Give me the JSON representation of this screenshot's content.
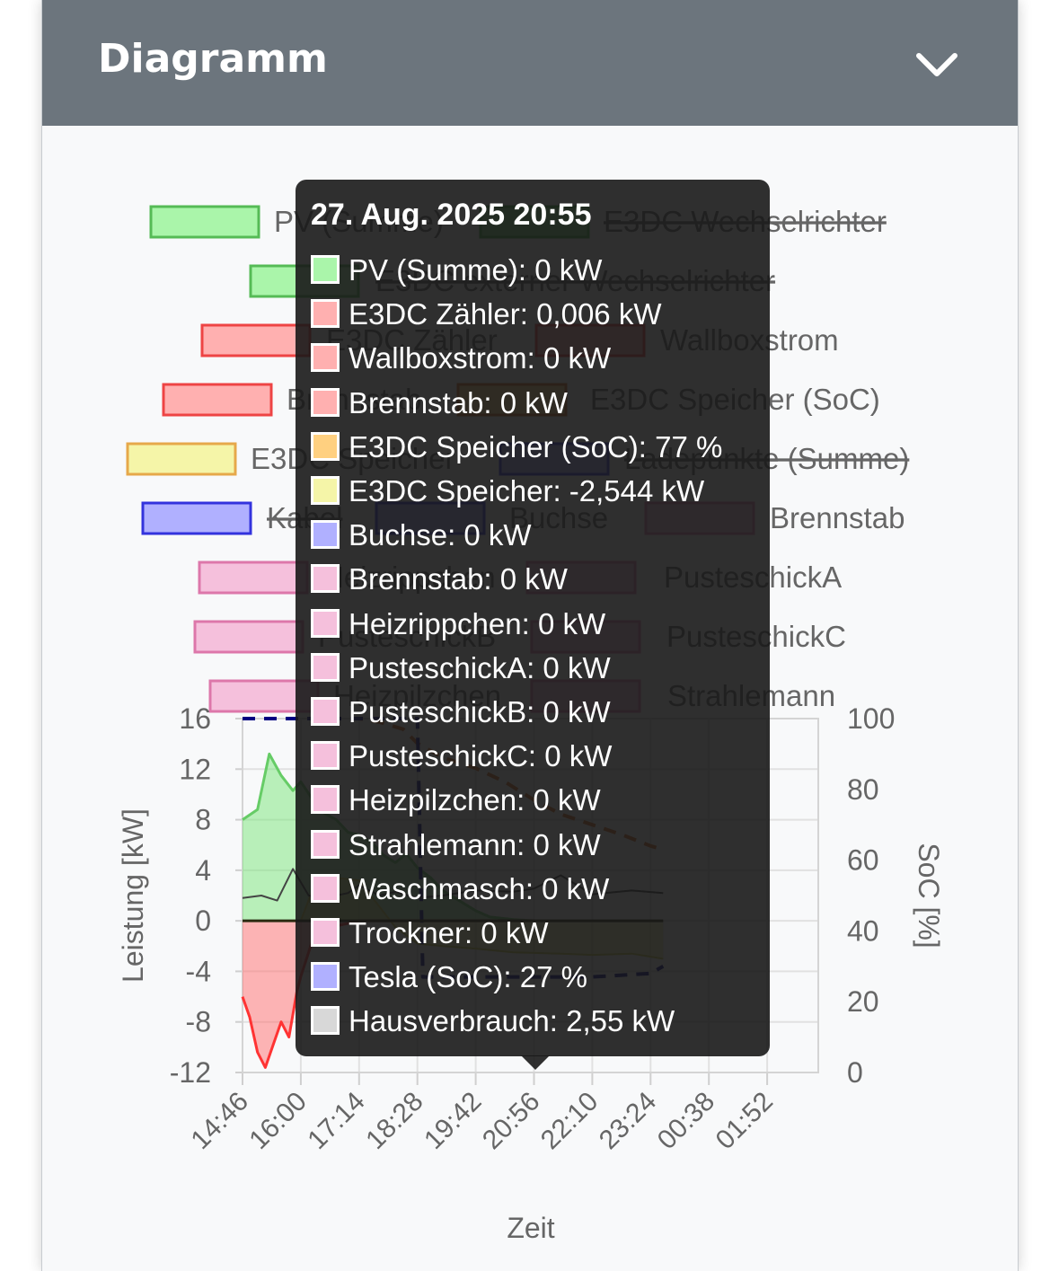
{
  "card": {
    "title": "Diagramm"
  },
  "colors": {
    "header_bg": "#6c757d",
    "card_bg": "#f8f9fa",
    "pv": "#66cc66",
    "grid_meter": "#ff3333",
    "soc": "#d2691e",
    "battery_power": "#dddd55",
    "ev_soc": "#000080",
    "consumption": "#444444"
  },
  "icons": {
    "collapse": "chevron-down-icon"
  },
  "chart_data": {
    "type": "line",
    "xlabel": "Zeit",
    "ylabel": "Leistung [kW]",
    "y2label": "SoC [%]",
    "ylim": [
      -12,
      16
    ],
    "y2lim": [
      0,
      100
    ],
    "x_ticks": [
      "14:46",
      "16:00",
      "17:14",
      "18:28",
      "19:42",
      "20:56",
      "22:10",
      "23:24",
      "00:38",
      "01:52"
    ],
    "y_ticks": [
      16,
      12,
      8,
      4,
      0,
      -4,
      -8,
      -12
    ],
    "y2_ticks": [
      100,
      80,
      60,
      40,
      20,
      0
    ],
    "grid": true,
    "legend_position": "top",
    "legend": [
      {
        "label": "PV (Summe)",
        "fill": "#aaf5aa",
        "border": "#55bb55",
        "hidden": false
      },
      {
        "label": "E3DC Wechselrichter",
        "fill": "#7fd17f",
        "border": "#44aa44",
        "hidden": true
      },
      {
        "label": "E3DC externer Wechselrichter",
        "fill": "#aaf5aa",
        "border": "#55bb55",
        "hidden": true
      },
      {
        "label": "E3DC Zähler",
        "fill": "#ffb0b0",
        "border": "#ee4444",
        "hidden": false
      },
      {
        "label": "Wallboxstrom",
        "fill": "#ffb0b0",
        "border": "#ee4444",
        "hidden": false
      },
      {
        "label": "Brennstab",
        "fill": "#ffb0b0",
        "border": "#ee4444",
        "hidden": false
      },
      {
        "label": "E3DC Speicher (SoC)",
        "fill": "#ffd080",
        "border": "#d2691e",
        "hidden": false
      },
      {
        "label": "E3DC Speicher",
        "fill": "#f5f5a8",
        "border": "#e6a84a",
        "hidden": false
      },
      {
        "label": "Ladepunkte (Summe)",
        "fill": "#b0b0ff",
        "border": "#3333dd",
        "hidden": true
      },
      {
        "label": "Kabel",
        "fill": "#b0b0ff",
        "border": "#3333dd",
        "hidden": true
      },
      {
        "label": "Buchse",
        "fill": "#b0b0ff",
        "border": "#3333dd",
        "hidden": false
      },
      {
        "label": "Brennstab",
        "fill": "#f5c0dc",
        "border": "#dd77aa",
        "hidden": false
      },
      {
        "label": "Heizrippchen",
        "fill": "#f5c0dc",
        "border": "#dd77aa",
        "hidden": false
      },
      {
        "label": "PusteschickA",
        "fill": "#f5c0dc",
        "border": "#dd77aa",
        "hidden": false
      },
      {
        "label": "PusteschickB",
        "fill": "#f5c0dc",
        "border": "#dd77aa",
        "hidden": false
      },
      {
        "label": "PusteschickC",
        "fill": "#f5c0dc",
        "border": "#dd77aa",
        "hidden": false
      },
      {
        "label": "Heizpilzchen",
        "fill": "#f5c0dc",
        "border": "#dd77aa",
        "hidden": false
      },
      {
        "label": "Strahlemann",
        "fill": "#f5c0dc",
        "border": "#dd77aa",
        "hidden": false
      }
    ],
    "series": [
      {
        "name": "PV (Summe)",
        "axis": "left",
        "x": [
          "14:46",
          "15:05",
          "15:20",
          "15:35",
          "15:50",
          "16:00",
          "16:15",
          "16:30",
          "16:45",
          "17:00",
          "17:14",
          "17:30",
          "17:45",
          "18:00",
          "18:14",
          "18:28",
          "18:45",
          "19:00",
          "19:42",
          "20:00",
          "20:30",
          "20:56"
        ],
        "values": [
          8.0,
          8.8,
          13.2,
          11.5,
          10.3,
          11.0,
          9.6,
          8.5,
          8.0,
          7.0,
          6.8,
          6.2,
          5.2,
          4.6,
          5.3,
          4.2,
          3.4,
          2.4,
          0.8,
          0.3,
          0.1,
          0.0
        ]
      },
      {
        "name": "E3DC Zähler",
        "axis": "left",
        "x": [
          "14:46",
          "14:55",
          "15:05",
          "15:15",
          "15:25",
          "15:35",
          "15:45",
          "15:55",
          "16:00",
          "16:15",
          "16:30",
          "17:00",
          "17:14",
          "18:00",
          "18:28",
          "19:00",
          "19:42",
          "20:56"
        ],
        "values": [
          -6.0,
          -7.6,
          -10.4,
          -11.6,
          -9.8,
          -8.0,
          -9.2,
          -5.6,
          -4.4,
          -1.5,
          -0.6,
          -0.2,
          0.0,
          0.0,
          0.0,
          0.0,
          0.0,
          0.0
        ]
      },
      {
        "name": "E3DC Speicher (SoC)",
        "axis": "right",
        "x": [
          "14:46",
          "15:30",
          "16:00",
          "17:00",
          "17:14",
          "17:40",
          "18:10",
          "18:28",
          "19:00",
          "19:42",
          "20:20",
          "20:56",
          "21:30",
          "22:10",
          "22:50",
          "23:24",
          "23:40"
        ],
        "values": [
          100,
          100,
          100,
          100,
          100,
          99,
          97,
          93,
          89,
          86,
          82,
          77,
          73,
          70,
          67,
          64,
          63
        ]
      },
      {
        "name": "E3DC Speicher",
        "axis": "left",
        "x": [
          "14:46",
          "15:30",
          "16:00",
          "16:15",
          "16:45",
          "17:14",
          "18:00",
          "18:28",
          "19:00",
          "19:42",
          "20:30",
          "20:56",
          "21:30",
          "22:10",
          "23:00",
          "23:40"
        ],
        "values": [
          0.0,
          0.0,
          0.0,
          2.5,
          3.4,
          3.2,
          -0.5,
          -1.8,
          -2.0,
          -2.2,
          -2.5,
          -2.544,
          -2.6,
          -2.7,
          -2.6,
          -3.0
        ]
      },
      {
        "name": "Tesla (SoC)",
        "axis": "right",
        "x": [
          "14:46",
          "16:00",
          "17:14",
          "18:28",
          "18:35",
          "19:00",
          "19:42",
          "20:56",
          "22:10",
          "23:24",
          "23:40"
        ],
        "values": [
          100,
          100,
          100,
          100,
          27,
          27,
          27,
          27,
          27,
          28,
          30
        ]
      },
      {
        "name": "Hausverbrauch",
        "axis": "left",
        "x": [
          "14:46",
          "15:10",
          "15:30",
          "15:50",
          "16:10",
          "16:30",
          "17:00",
          "17:14",
          "17:40",
          "18:00",
          "18:28",
          "19:00",
          "19:42",
          "20:30",
          "20:56",
          "21:30",
          "22:10",
          "23:00",
          "23:40"
        ],
        "values": [
          1.8,
          2.0,
          1.6,
          4.1,
          2.0,
          1.8,
          2.2,
          2.8,
          2.0,
          2.3,
          1.8,
          2.0,
          2.4,
          2.3,
          2.55,
          3.6,
          2.1,
          2.4,
          2.2
        ]
      }
    ]
  },
  "tooltip": {
    "title": "27. Aug. 2025 20:55",
    "rows": [
      {
        "text": "PV (Summe): 0 kW",
        "fill": "#aaf5aa"
      },
      {
        "text": "E3DC Zähler: 0,006 kW",
        "fill": "#ffb0b0"
      },
      {
        "text": "Wallboxstrom: 0 kW",
        "fill": "#ffb0b0"
      },
      {
        "text": "Brennstab: 0 kW",
        "fill": "#ffb0b0"
      },
      {
        "text": "E3DC Speicher (SoC): 77 %",
        "fill": "#ffd080"
      },
      {
        "text": "E3DC Speicher: -2,544 kW",
        "fill": "#f5f5a8"
      },
      {
        "text": " Buchse: 0 kW",
        "fill": "#b0b0ff"
      },
      {
        "text": "Brennstab: 0 kW",
        "fill": "#f5c0dc"
      },
      {
        "text": "Heizrippchen: 0 kW",
        "fill": "#f5c0dc"
      },
      {
        "text": "PusteschickA: 0 kW",
        "fill": "#f5c0dc"
      },
      {
        "text": "PusteschickB: 0 kW",
        "fill": "#f5c0dc"
      },
      {
        "text": "PusteschickC: 0 kW",
        "fill": "#f5c0dc"
      },
      {
        "text": "Heizpilzchen: 0 kW",
        "fill": "#f5c0dc"
      },
      {
        "text": "Strahlemann: 0 kW",
        "fill": "#f5c0dc"
      },
      {
        "text": "Waschmasch: 0 kW",
        "fill": "#f5c0dc"
      },
      {
        "text": "Trockner: 0 kW",
        "fill": "#f5c0dc"
      },
      {
        "text": "Tesla (SoC): 27 %",
        "fill": "#b0b0ff"
      },
      {
        "text": "Hausverbrauch: 2,55 kW",
        "fill": "#d8d8d8"
      }
    ]
  }
}
